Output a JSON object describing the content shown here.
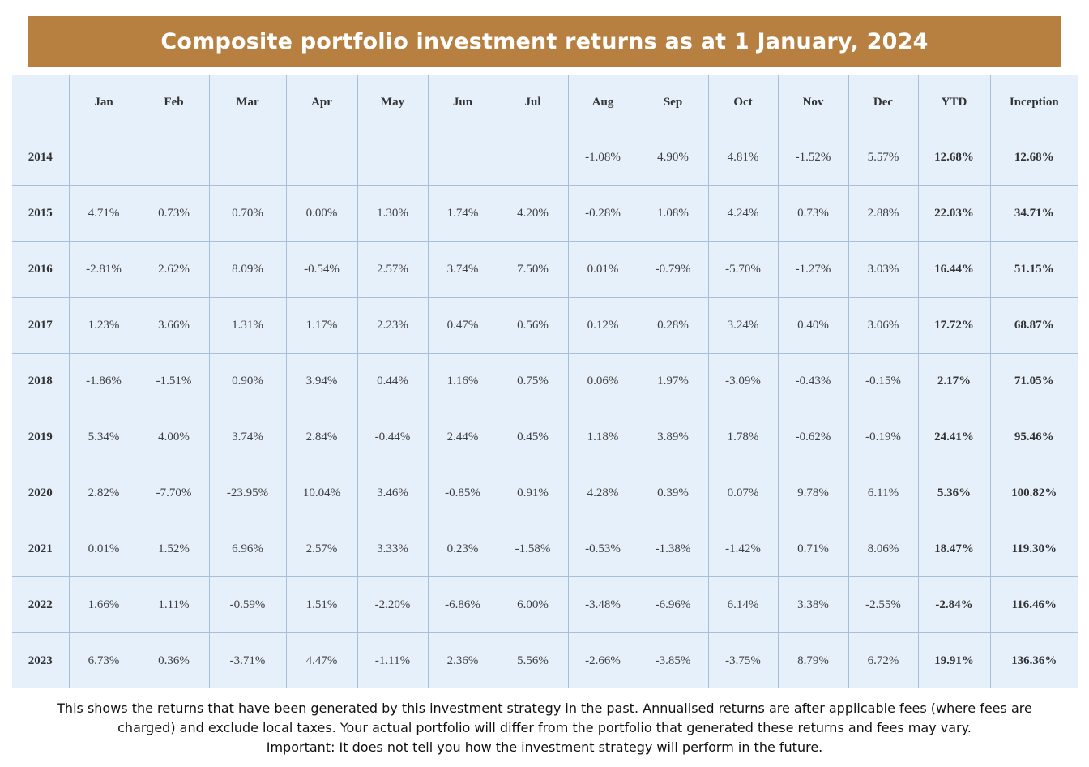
{
  "title": "Composite portfolio investment returns as at 1 January, 2024",
  "colors": {
    "banner_bg": "#b88040",
    "table_bg": "#e6f0fa",
    "grid_line": "#a9bfd6"
  },
  "table": {
    "columns": [
      "",
      "Jan",
      "Feb",
      "Mar",
      "Apr",
      "May",
      "Jun",
      "Jul",
      "Aug",
      "Sep",
      "Oct",
      "Nov",
      "Dec",
      "YTD",
      "Inception"
    ],
    "rows": [
      [
        "2014",
        "",
        "",
        "",
        "",
        "",
        "",
        "",
        "-1.08%",
        "4.90%",
        "4.81%",
        "-1.52%",
        "5.57%",
        "12.68%",
        "12.68%"
      ],
      [
        "2015",
        "4.71%",
        "0.73%",
        "0.70%",
        "0.00%",
        "1.30%",
        "1.74%",
        "4.20%",
        "-0.28%",
        "1.08%",
        "4.24%",
        "0.73%",
        "2.88%",
        "22.03%",
        "34.71%"
      ],
      [
        "2016",
        "-2.81%",
        "2.62%",
        "8.09%",
        "-0.54%",
        "2.57%",
        "3.74%",
        "7.50%",
        "0.01%",
        "-0.79%",
        "-5.70%",
        "-1.27%",
        "3.03%",
        "16.44%",
        "51.15%"
      ],
      [
        "2017",
        "1.23%",
        "3.66%",
        "1.31%",
        "1.17%",
        "2.23%",
        "0.47%",
        "0.56%",
        "0.12%",
        "0.28%",
        "3.24%",
        "0.40%",
        "3.06%",
        "17.72%",
        "68.87%"
      ],
      [
        "2018",
        "-1.86%",
        "-1.51%",
        "0.90%",
        "3.94%",
        "0.44%",
        "1.16%",
        "0.75%",
        "0.06%",
        "1.97%",
        "-3.09%",
        "-0.43%",
        "-0.15%",
        "2.17%",
        "71.05%"
      ],
      [
        "2019",
        "5.34%",
        "4.00%",
        "3.74%",
        "2.84%",
        "-0.44%",
        "2.44%",
        "0.45%",
        "1.18%",
        "3.89%",
        "1.78%",
        "-0.62%",
        "-0.19%",
        "24.41%",
        "95.46%"
      ],
      [
        "2020",
        "2.82%",
        "-7.70%",
        "-23.95%",
        "10.04%",
        "3.46%",
        "-0.85%",
        "0.91%",
        "4.28%",
        "0.39%",
        "0.07%",
        "9.78%",
        "6.11%",
        "5.36%",
        "100.82%"
      ],
      [
        "2021",
        "0.01%",
        "1.52%",
        "6.96%",
        "2.57%",
        "3.33%",
        "0.23%",
        "-1.58%",
        "-0.53%",
        "-1.38%",
        "-1.42%",
        "0.71%",
        "8.06%",
        "18.47%",
        "119.30%"
      ],
      [
        "2022",
        "1.66%",
        "1.11%",
        "-0.59%",
        "1.51%",
        "-2.20%",
        "-6.86%",
        "6.00%",
        "-3.48%",
        "-6.96%",
        "6.14%",
        "3.38%",
        "-2.55%",
        "-2.84%",
        "116.46%"
      ],
      [
        "2023",
        "6.73%",
        "0.36%",
        "-3.71%",
        "4.47%",
        "-1.11%",
        "2.36%",
        "5.56%",
        "-2.66%",
        "-3.85%",
        "-3.75%",
        "8.79%",
        "6.72%",
        "19.91%",
        "136.36%"
      ]
    ]
  },
  "footnote": {
    "line1": "This shows the returns that have been generated by this investment strategy in the past.  Annualised returns are after applicable fees (where fees are",
    "line2": "charged) and exclude local taxes.  Your actual portfolio will differ from the portfolio that generated these returns and fees may vary.",
    "line3": "Important: It does not tell you how the investment strategy will perform in the future."
  }
}
